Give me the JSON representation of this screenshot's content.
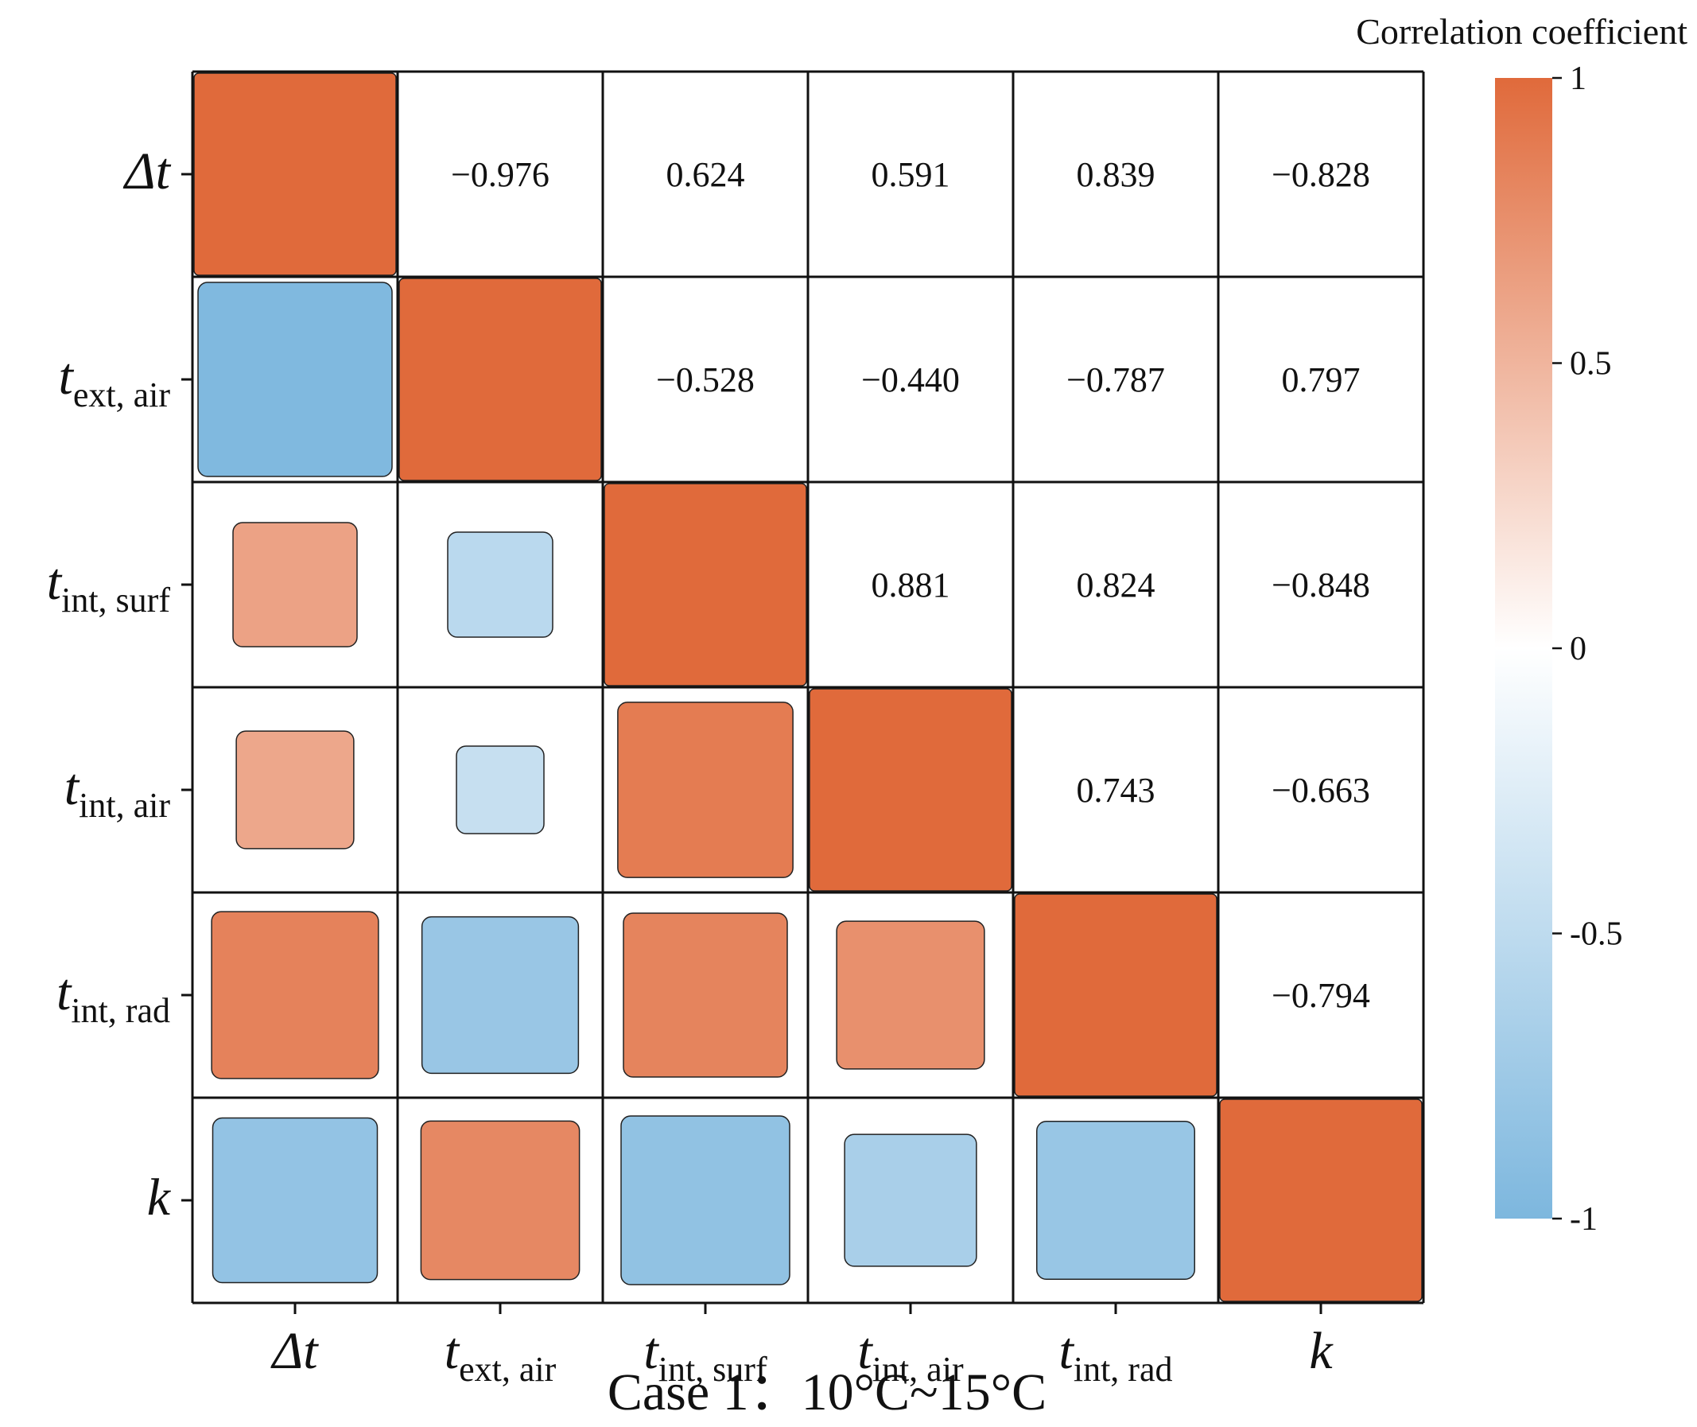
{
  "chart_data": {
    "type": "heatmap",
    "subtype": "correlation-matrix",
    "variables": [
      {
        "base": "Δt",
        "sub": ""
      },
      {
        "base": "t",
        "sub": "ext, air"
      },
      {
        "base": "t",
        "sub": "int, surf"
      },
      {
        "base": "t",
        "sub": "int, air"
      },
      {
        "base": "t",
        "sub": "int, rad"
      },
      {
        "base": "k",
        "sub": ""
      }
    ],
    "matrix": [
      [
        1,
        -0.976,
        0.624,
        0.591,
        0.839,
        -0.828
      ],
      [
        -0.976,
        1,
        -0.528,
        -0.44,
        -0.787,
        0.797
      ],
      [
        0.624,
        -0.528,
        1,
        0.881,
        0.824,
        -0.848
      ],
      [
        0.591,
        -0.44,
        0.881,
        1,
        0.743,
        -0.663
      ],
      [
        0.839,
        -0.787,
        0.824,
        0.743,
        1,
        -0.794
      ],
      [
        -0.828,
        0.797,
        -0.848,
        -0.663,
        -0.794,
        1
      ]
    ],
    "value_labels": [
      [
        "",
        "−0.976",
        "0.624",
        "0.591",
        "0.839",
        "−0.828"
      ],
      [
        "",
        "",
        "−0.528",
        "−0.440",
        "−0.787",
        "0.797"
      ],
      [
        "",
        "",
        "",
        "0.881",
        "0.824",
        "−0.848"
      ],
      [
        "",
        "",
        "",
        "",
        "0.743",
        "−0.663"
      ],
      [
        "",
        "",
        "",
        "",
        "",
        "−0.794"
      ],
      [
        "",
        "",
        "",
        "",
        "",
        ""
      ]
    ],
    "upper_triangle": "numbers",
    "lower_triangle": "squares",
    "colorbar": {
      "title": "Correlation coefficient",
      "range": [
        -1,
        1
      ],
      "ticks": [
        1,
        0.5,
        0,
        -0.5,
        -1
      ],
      "tick_labels": [
        "1",
        "0.5",
        "0",
        "-0.5",
        "-1"
      ],
      "colors": {
        "positive": "#E06A3B",
        "zero": "#FFFFFF",
        "negative": "#7DB7DE"
      }
    },
    "caption": "Case 1：10°C~15°C"
  }
}
